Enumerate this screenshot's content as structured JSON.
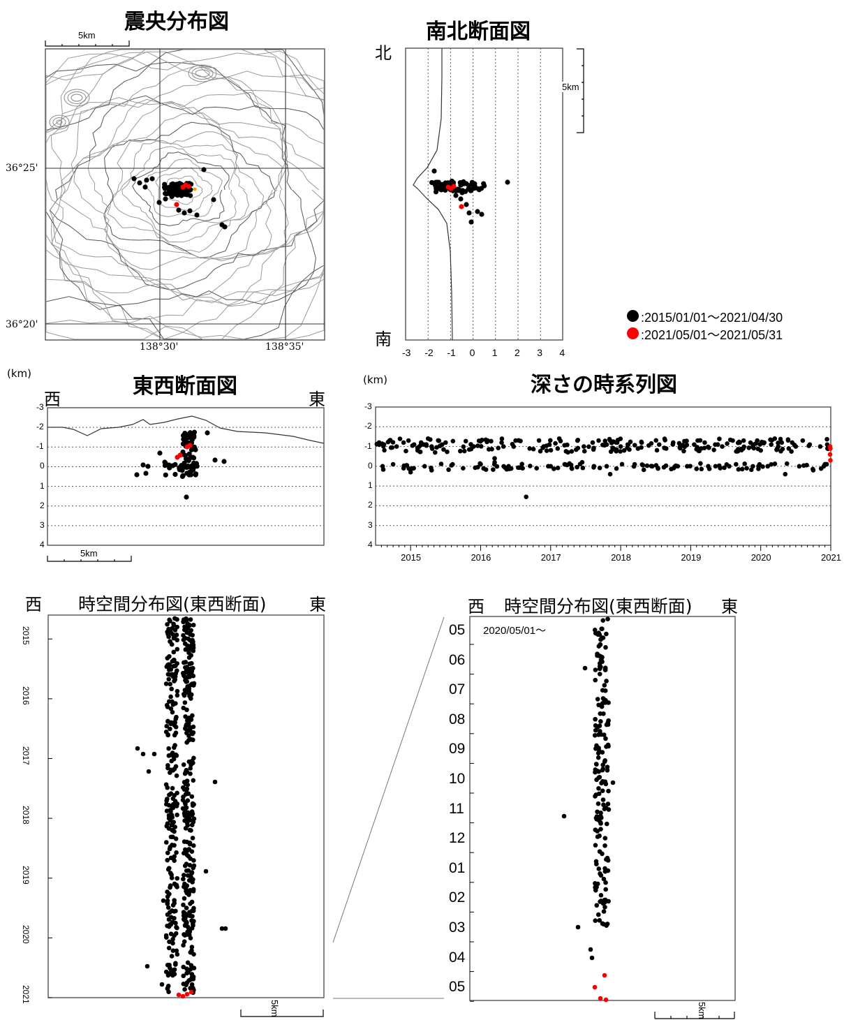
{
  "legend": [
    {
      "text": ":2015/01/01～2021/04/30",
      "color": "#000000"
    },
    {
      "text": ":2021/05/01～2021/05/31",
      "color": "#ff0000"
    }
  ],
  "colors": {
    "old": "#000000",
    "new": "#ff0000",
    "contour": "#888888",
    "grid": "#555555"
  },
  "scale_label": "5km",
  "unit_label": "(km)",
  "panels": {
    "epicenter": {
      "title": "震央分布図",
      "lat_labels": [
        "36°25'",
        "36°20'"
      ],
      "lon_labels": [
        "138°30'",
        "138°35'"
      ]
    },
    "ns_section": {
      "title": "南北断面図",
      "north": "北",
      "south": "南",
      "x_ticks": [
        "-3",
        "-2",
        "-1",
        "0",
        "1",
        "2",
        "3",
        "4"
      ]
    },
    "ew_section": {
      "title": "東西断面図",
      "west": "西",
      "east": "東",
      "y_ticks": [
        "-3",
        "-2",
        "-1",
        "0",
        "1",
        "2",
        "3",
        "4"
      ]
    },
    "timeseries": {
      "title": "深さの時系列図",
      "y_ticks": [
        "-3",
        "-2",
        "-1",
        "0",
        "1",
        "2",
        "3",
        "4"
      ],
      "x_ticks": [
        "2015",
        "2016",
        "2017",
        "2018",
        "2019",
        "2020",
        "2021"
      ]
    },
    "spacetime": {
      "title": "時空間分布図(東西断面)",
      "west": "西",
      "east": "東",
      "year_ticks": [
        "2015",
        "2016",
        "2017",
        "2018",
        "2019",
        "2020",
        "2021"
      ]
    },
    "spacetime_zoom": {
      "title": "時空間分布図(東西断面)",
      "west": "西",
      "east": "東",
      "start_label": "2020/05/01～",
      "month_ticks": [
        "05",
        "06",
        "07",
        "08",
        "09",
        "10",
        "11",
        "12",
        "01",
        "02",
        "03",
        "04",
        "05"
      ]
    }
  },
  "chart_data": [
    {
      "type": "scatter",
      "title": "深さの時系列図",
      "ylabel": "(km)",
      "ylim": [
        4,
        -3
      ],
      "xlim": [
        2014.5,
        2021.0
      ],
      "series": [
        {
          "name": ":2015/01/01～2021/04/30",
          "color": "#000000",
          "points": [
            [
              2014.55,
              -1.2
            ],
            [
              2014.62,
              -1.1
            ],
            [
              2014.7,
              -1.3
            ],
            [
              2014.8,
              -1.0
            ],
            [
              2014.9,
              -1.2
            ],
            [
              2014.97,
              -1.3
            ],
            [
              2015.05,
              -1.1
            ],
            [
              2015.1,
              -0.8
            ],
            [
              2015.15,
              -1.2
            ],
            [
              2015.25,
              -1.4
            ],
            [
              2015.3,
              -1.0
            ],
            [
              2015.35,
              -0.7
            ],
            [
              2015.4,
              -1.3
            ],
            [
              2015.45,
              -1.1
            ],
            [
              2014.6,
              0.0
            ],
            [
              2014.75,
              -0.1
            ],
            [
              2014.9,
              0.1
            ],
            [
              2015.0,
              0.3
            ],
            [
              2015.2,
              0.0
            ],
            [
              2015.3,
              0.2
            ],
            [
              2015.5,
              -1.2
            ],
            [
              2015.6,
              -0.1
            ],
            [
              2015.75,
              0.1
            ],
            [
              2015.9,
              -1.0
            ],
            [
              2016.0,
              -0.1
            ],
            [
              2016.1,
              -1.3
            ],
            [
              2016.2,
              -0.2
            ],
            [
              2016.3,
              -1.2
            ],
            [
              2016.2,
              -0.4
            ],
            [
              2016.4,
              0.0
            ],
            [
              2016.5,
              -1.3
            ],
            [
              2016.6,
              0.1
            ],
            [
              2016.7,
              -0.9
            ],
            [
              2016.65,
              1.55
            ],
            [
              2016.8,
              0.1
            ],
            [
              2016.9,
              -1.0
            ],
            [
              2017.0,
              0.0
            ],
            [
              2017.1,
              -0.9
            ],
            [
              2017.2,
              -0.1
            ],
            [
              2017.3,
              0.1
            ],
            [
              2017.45,
              -0.2
            ],
            [
              2017.6,
              -1.2
            ],
            [
              2017.8,
              -1.1
            ],
            [
              2017.85,
              -1.3
            ],
            [
              2017.9,
              -0.9
            ],
            [
              2017.95,
              -1.2
            ],
            [
              2018.0,
              -1.0
            ],
            [
              2018.05,
              -0.8
            ],
            [
              2017.8,
              0.0
            ],
            [
              2017.85,
              0.4
            ],
            [
              2018.1,
              -1.1
            ],
            [
              2018.2,
              -0.1
            ],
            [
              2018.3,
              -1.2
            ],
            [
              2018.45,
              0.0
            ],
            [
              2018.55,
              -1.1
            ],
            [
              2018.65,
              -0.9
            ],
            [
              2018.75,
              -1.2
            ],
            [
              2018.85,
              -1.0
            ],
            [
              2018.95,
              0.0
            ],
            [
              2019.05,
              -1.1
            ],
            [
              2019.1,
              -1.3
            ],
            [
              2019.15,
              -0.9
            ],
            [
              2019.2,
              -1.2
            ],
            [
              2019.25,
              0.0
            ],
            [
              2019.35,
              -1.1
            ],
            [
              2019.45,
              -1.0
            ],
            [
              2019.55,
              0.0
            ],
            [
              2019.6,
              -1.3
            ],
            [
              2019.7,
              -1.2
            ],
            [
              2019.75,
              -0.9
            ],
            [
              2019.8,
              0.1
            ],
            [
              2019.9,
              -1.1
            ],
            [
              2019.95,
              -1.3
            ],
            [
              2020.0,
              -0.8
            ],
            [
              2020.05,
              -1.2
            ],
            [
              2020.1,
              0.0
            ],
            [
              2020.15,
              -1.1
            ],
            [
              2020.2,
              -1.4
            ],
            [
              2020.25,
              -1.0
            ],
            [
              2020.3,
              -1.2
            ],
            [
              2020.35,
              0.4
            ],
            [
              2020.4,
              -0.9
            ],
            [
              2020.45,
              -1.2
            ],
            [
              2020.5,
              -1.0
            ],
            [
              2020.55,
              0.0
            ],
            [
              2020.6,
              -1.3
            ],
            [
              2020.7,
              -1.1
            ],
            [
              2020.75,
              0.2
            ],
            [
              2020.85,
              -1.0
            ],
            [
              2020.9,
              0.0
            ],
            [
              2020.95,
              -1.1
            ]
          ]
        },
        {
          "name": ":2021/05/01～2021/05/31",
          "color": "#ff0000",
          "points": [
            [
              2020.99,
              -1.0
            ],
            [
              2020.995,
              -0.9
            ],
            [
              2020.99,
              -0.6
            ],
            [
              2020.995,
              -0.3
            ]
          ]
        }
      ]
    }
  ]
}
